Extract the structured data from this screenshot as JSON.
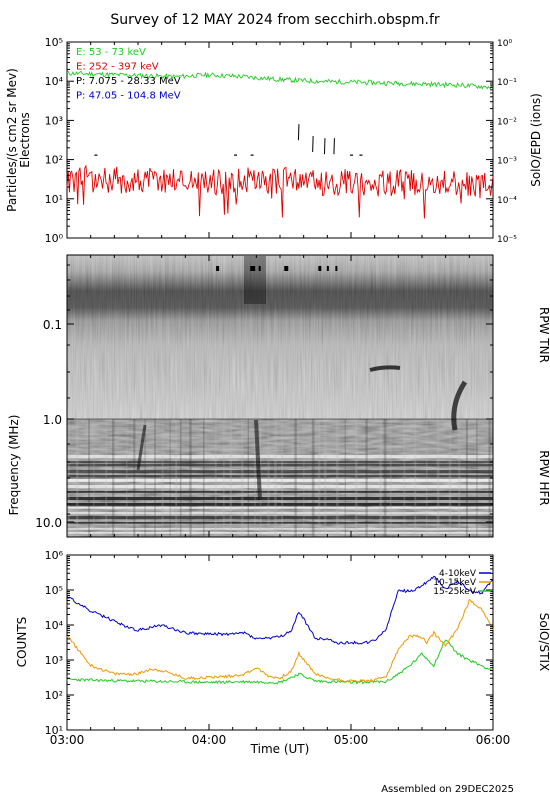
{
  "title": "Survey of 12 MAY 2024 from secchirh.obspm.fr",
  "footer": "Assembled on  29DEC2025",
  "colors": {
    "e53": "#22cc22",
    "e252": "#e00000",
    "p7": "#000000",
    "p47": "#0000cc",
    "stix_4_10": "#0000cc",
    "stix_10_15": "#ee9900",
    "stix_15_25": "#22cc22"
  },
  "chart_data": [
    {
      "type": "line",
      "panel": "epd",
      "left_axis": {
        "label_line1": "Particles/(s cm2 sr Mev)",
        "label_line2": "Electrons",
        "scale": "log",
        "ylim": [
          1,
          100000
        ],
        "tick_labels": [
          "10⁰",
          "10¹",
          "10²",
          "10³",
          "10⁴",
          "10⁵"
        ]
      },
      "right_axis": {
        "label": "SolO/EPD (ions)",
        "scale": "log",
        "ylim": [
          1e-05,
          1
        ],
        "tick_labels": [
          "10⁻⁵",
          "10⁻⁴",
          "10⁻³",
          "10⁻²",
          "10⁻¹",
          "10⁰"
        ]
      },
      "xlim": [
        "03:00",
        "06:00"
      ],
      "legend_position": "top-left",
      "series": [
        {
          "name": "E: 53 - 73 keV",
          "axis": "left",
          "x": [
            "03:00",
            "03:15",
            "03:30",
            "03:45",
            "04:00",
            "04:15",
            "04:30",
            "04:45",
            "05:00",
            "05:15",
            "05:30",
            "05:45",
            "06:00"
          ],
          "y": [
            16000,
            15000,
            14000,
            13000,
            14500,
            13000,
            11000,
            10000,
            9500,
            9000,
            8500,
            8000,
            7000
          ]
        },
        {
          "name": "E: 252 - 397 keV",
          "axis": "left",
          "x": [
            "03:00",
            "03:15",
            "03:30",
            "03:45",
            "04:00",
            "04:15",
            "04:30",
            "04:45",
            "05:00",
            "05:15",
            "05:30",
            "05:45",
            "06:00"
          ],
          "y": [
            30,
            32,
            28,
            30,
            27,
            28,
            30,
            26,
            27,
            25,
            28,
            24,
            20
          ]
        },
        {
          "name": "P: 7.075 - 28.33 MeV",
          "axis": "right",
          "x": [
            "03:12",
            "04:11",
            "04:18",
            "04:38",
            "04:44",
            "04:49",
            "04:53",
            "05:00",
            "05:04"
          ],
          "y": [
            0.0013,
            0.0013,
            0.0013,
            0.005,
            0.0025,
            0.0022,
            0.0022,
            0.0013,
            0.0013
          ]
        },
        {
          "name": "P: 47.05 - 104.8 MeV",
          "axis": "right",
          "x": [],
          "y": []
        }
      ]
    },
    {
      "type": "heatmap",
      "panel": "rpw",
      "ylabel": "Frequency (MHz)",
      "sections": [
        "RPW TNR",
        "RPW HFR"
      ],
      "y_tick_labels": [
        "0.1",
        "1.0",
        "10.0"
      ],
      "xlim": [
        "03:00",
        "06:00"
      ]
    },
    {
      "type": "line",
      "panel": "stix",
      "ylabel": "COUNTS",
      "right_label": "SolO/STIX",
      "scale": "log",
      "ylim": [
        10,
        1000000
      ],
      "y_tick_labels": [
        "10¹",
        "10²",
        "10³",
        "10⁴",
        "10⁵",
        "10⁶"
      ],
      "x_tick_labels": [
        "03:00",
        "04:00",
        "05:00",
        "06:00"
      ],
      "xlabel": "Time (UT)",
      "legend_position": "top-right",
      "series": [
        {
          "name": "4-10keV",
          "x": [
            "03:00",
            "03:10",
            "03:20",
            "03:25",
            "03:30",
            "03:40",
            "03:50",
            "04:00",
            "04:10",
            "04:15",
            "04:20",
            "04:30",
            "04:35",
            "04:38",
            "04:42",
            "04:45",
            "04:50",
            "04:55",
            "05:00",
            "05:05",
            "05:10",
            "05:15",
            "05:20",
            "05:25",
            "05:30",
            "05:35",
            "05:40",
            "05:45",
            "05:50",
            "05:55",
            "06:00"
          ],
          "y": [
            65000,
            25000,
            13000,
            9000,
            7000,
            10000,
            6000,
            5500,
            5500,
            6000,
            4000,
            4500,
            7000,
            25000,
            9000,
            4000,
            4000,
            3000,
            3200,
            3000,
            3500,
            8000,
            100000,
            90000,
            130000,
            250000,
            110000,
            180000,
            100000,
            80000,
            200000
          ]
        },
        {
          "name": "10-15keV",
          "x": [
            "03:00",
            "03:10",
            "03:20",
            "03:30",
            "03:35",
            "03:40",
            "03:50",
            "04:00",
            "04:10",
            "04:15",
            "04:20",
            "04:25",
            "04:30",
            "04:35",
            "04:38",
            "04:42",
            "04:45",
            "04:50",
            "05:00",
            "05:10",
            "05:15",
            "05:20",
            "05:25",
            "05:30",
            "05:32",
            "05:35",
            "05:40",
            "05:45",
            "05:50",
            "05:55",
            "06:00"
          ],
          "y": [
            5000,
            700,
            400,
            400,
            550,
            500,
            300,
            320,
            350,
            400,
            600,
            350,
            300,
            500,
            1500,
            700,
            400,
            300,
            250,
            260,
            350,
            2000,
            5000,
            4500,
            3000,
            6000,
            2500,
            8000,
            50000,
            30000,
            8000
          ]
        },
        {
          "name": "15-25keV",
          "x": [
            "03:00",
            "03:15",
            "03:30",
            "03:45",
            "04:00",
            "04:15",
            "04:30",
            "04:38",
            "04:45",
            "05:00",
            "05:15",
            "05:20",
            "05:25",
            "05:30",
            "05:35",
            "05:40",
            "05:45",
            "05:50",
            "05:55",
            "06:00"
          ],
          "y": [
            280,
            260,
            250,
            240,
            230,
            240,
            230,
            400,
            250,
            230,
            240,
            400,
            700,
            1500,
            700,
            4000,
            1500,
            1000,
            700,
            500
          ]
        }
      ]
    }
  ]
}
